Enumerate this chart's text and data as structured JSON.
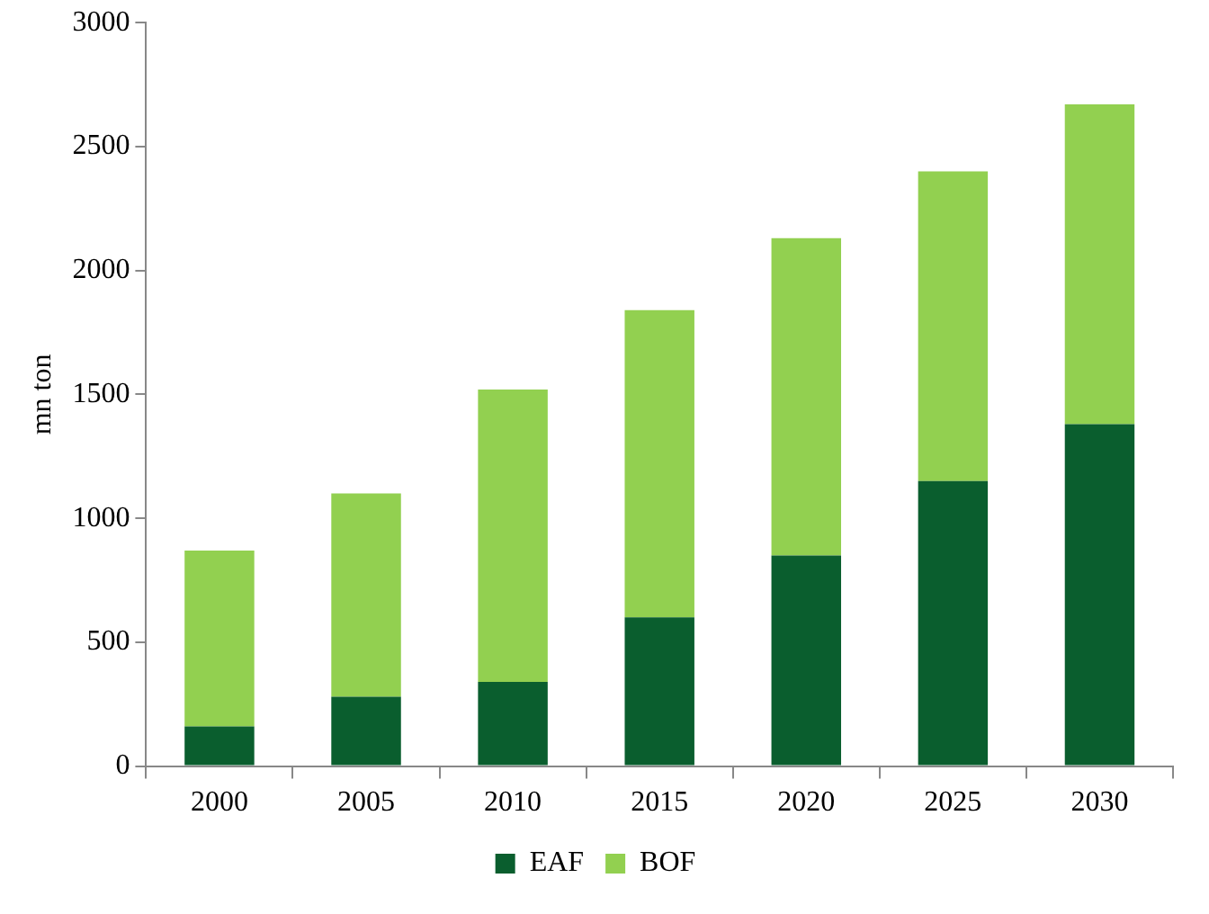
{
  "chart_data": {
    "type": "bar",
    "stacked": true,
    "ylabel": "mn ton",
    "categories": [
      "2000",
      "2005",
      "2010",
      "2015",
      "2020",
      "2025",
      "2030"
    ],
    "series": [
      {
        "name": "EAF",
        "color": "#0a5e2e",
        "values": [
          160,
          280,
          340,
          600,
          850,
          1150,
          1380
        ]
      },
      {
        "name": "BOF",
        "color": "#92d050",
        "values": [
          710,
          820,
          1180,
          1240,
          1280,
          1250,
          1290
        ]
      }
    ],
    "ylim": [
      0,
      3000
    ],
    "yticks": [
      0,
      500,
      1000,
      1500,
      2000,
      2500,
      3000
    ],
    "grid": false,
    "legend": "bottom"
  }
}
